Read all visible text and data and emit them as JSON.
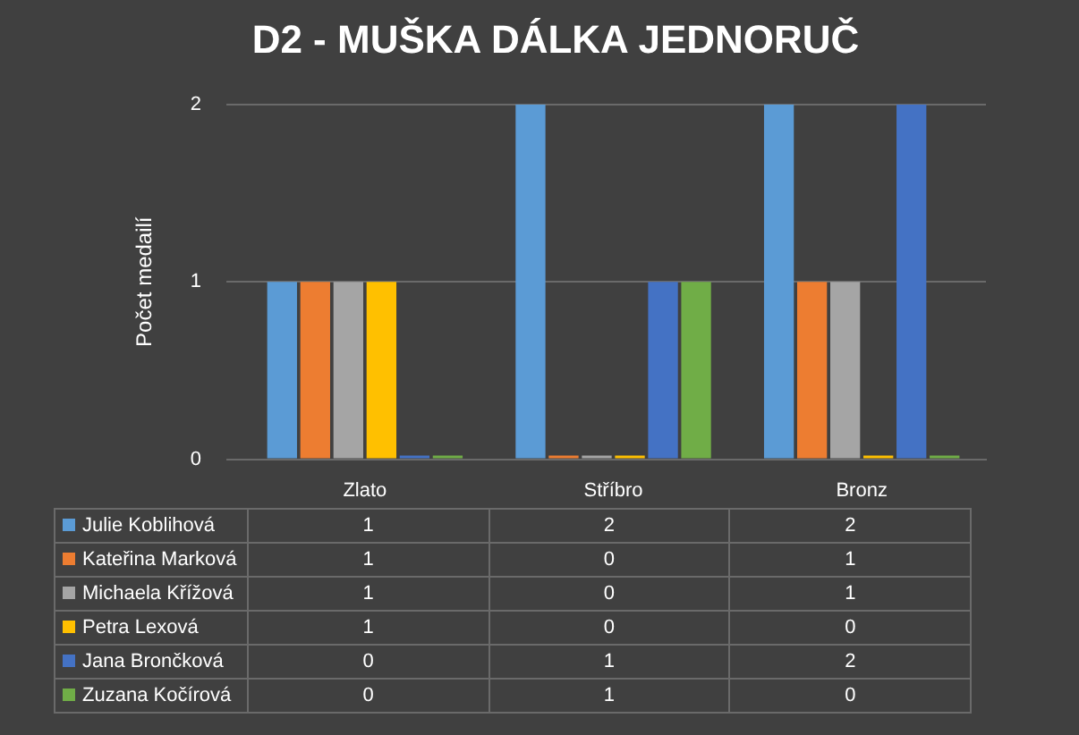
{
  "chart_data": {
    "type": "bar",
    "title": "D2 - MUŠKA DÁLKA JEDNORUČ",
    "ylabel": "Počet medailí",
    "categories": [
      "Zlato",
      "Stříbro",
      "Bronz"
    ],
    "series": [
      {
        "name": "Julie Koblihová",
        "color": "#5b9bd5",
        "values": [
          1,
          2,
          2
        ]
      },
      {
        "name": "Kateřina Marková",
        "color": "#ed7d31",
        "values": [
          1,
          0,
          1
        ]
      },
      {
        "name": "Michaela Křížová",
        "color": "#a5a5a5",
        "values": [
          1,
          0,
          1
        ]
      },
      {
        "name": "Petra Lexová",
        "color": "#ffc000",
        "values": [
          1,
          0,
          0
        ]
      },
      {
        "name": "Jana Brončková",
        "color": "#4472c4",
        "values": [
          0,
          1,
          2
        ]
      },
      {
        "name": "Zuzana Kočírová",
        "color": "#70ad47",
        "values": [
          0,
          1,
          0
        ]
      }
    ],
    "ylim": [
      0,
      2
    ],
    "yticks": [
      0,
      1,
      2
    ],
    "grid": "y",
    "data_labels": true,
    "legend": "bottom"
  }
}
